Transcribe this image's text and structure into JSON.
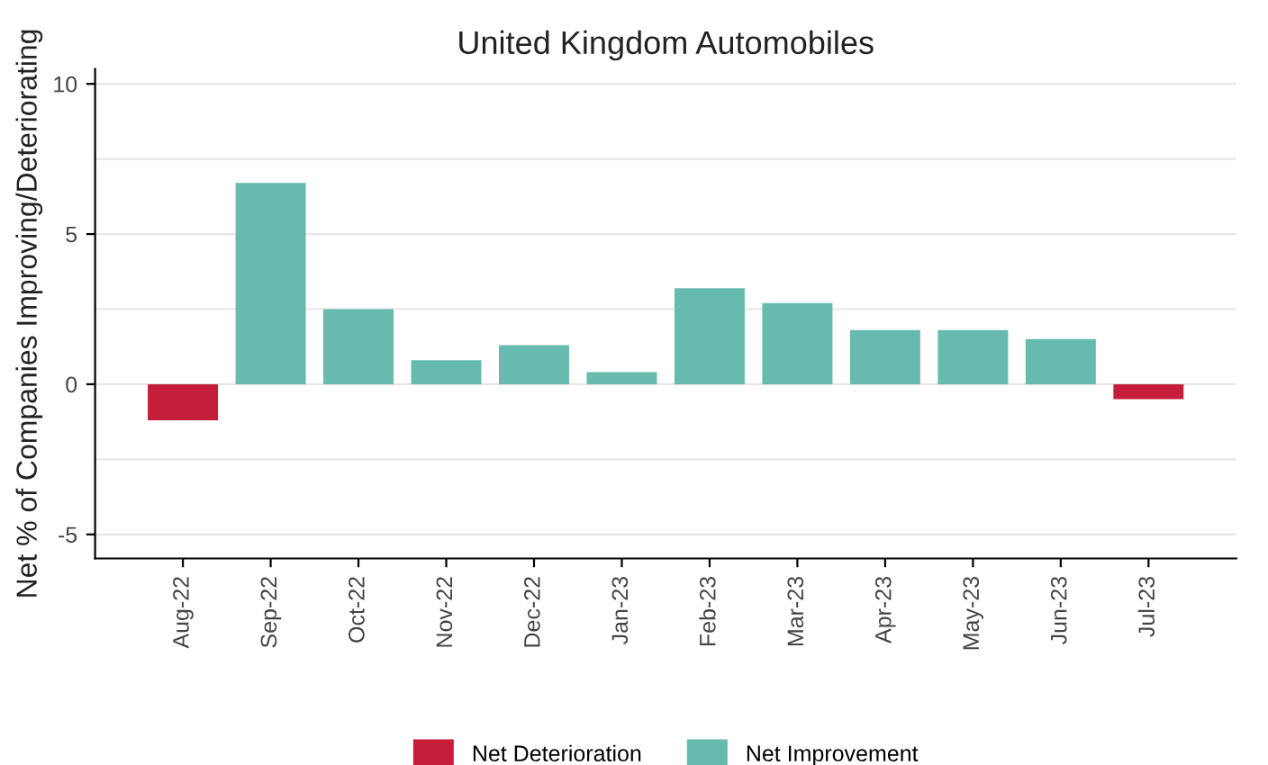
{
  "chart_data": {
    "type": "bar",
    "title": "United Kingdom Automobiles",
    "ylabel": "Net % of Companies Improving/Deteriorating",
    "categories": [
      "Aug-22",
      "Sep-22",
      "Oct-22",
      "Nov-22",
      "Dec-22",
      "Jan-23",
      "Feb-23",
      "Mar-23",
      "Apr-23",
      "May-23",
      "Jun-23",
      "Jul-23"
    ],
    "series": [
      {
        "name": "Net Deterioration",
        "color": "#c41e3a",
        "values": [
          -1.2,
          null,
          null,
          null,
          null,
          null,
          null,
          null,
          null,
          null,
          null,
          -0.5
        ]
      },
      {
        "name": "Net Improvement",
        "color": "#66bbae",
        "values": [
          null,
          6.7,
          2.5,
          0.8,
          1.3,
          0.4,
          3.2,
          2.7,
          1.8,
          1.8,
          1.5,
          null
        ]
      }
    ],
    "ylim": [
      -5.8,
      10.5
    ],
    "yticks": [
      -5,
      {
        "value": -2.5,
        "label": null
      },
      0,
      {
        "value": 2.5,
        "label": null
      },
      5,
      {
        "value": 7.5,
        "label": null
      },
      10
    ],
    "grid": "y",
    "legend": "bottom"
  }
}
